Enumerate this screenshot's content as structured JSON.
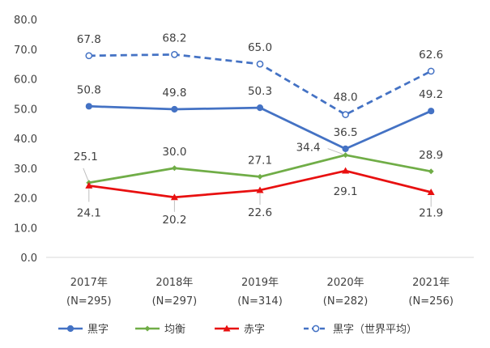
{
  "chart_data": {
    "type": "line",
    "title": "",
    "xlabel": "",
    "ylabel": "",
    "ylim": [
      0,
      80
    ],
    "ytick_step": 10,
    "y_tick_labels": [
      "0.0",
      "10.0",
      "20.0",
      "30.0",
      "40.0",
      "50.0",
      "60.0",
      "70.0",
      "80.0"
    ],
    "grid": false,
    "legend_position": "bottom",
    "categories": [
      {
        "year": "2017年",
        "n": "(N=295)"
      },
      {
        "year": "2018年",
        "n": "(N=297)"
      },
      {
        "year": "2019年",
        "n": "(N=314)"
      },
      {
        "year": "2020年",
        "n": "(N=282)"
      },
      {
        "year": "2021年",
        "n": "(N=256)"
      }
    ],
    "series": [
      {
        "name": "黒字",
        "values": [
          50.8,
          49.8,
          50.3,
          36.5,
          49.2
        ],
        "labels": [
          "50.8",
          "49.8",
          "50.3",
          "36.5",
          "49.2"
        ],
        "color": "#4472C4",
        "marker": "circle",
        "dashed": false
      },
      {
        "name": "均衡",
        "values": [
          25.1,
          30.0,
          27.1,
          34.4,
          28.9
        ],
        "labels": [
          "25.1",
          "30.0",
          "27.1",
          "34.4",
          "28.9"
        ],
        "color": "#70AD47",
        "marker": "diamond",
        "dashed": false
      },
      {
        "name": "赤字",
        "values": [
          24.1,
          20.2,
          22.6,
          29.1,
          21.9
        ],
        "labels": [
          "24.1",
          "20.2",
          "22.6",
          "29.1",
          "21.9"
        ],
        "color": "#E81010",
        "marker": "triangle",
        "dashed": false
      },
      {
        "name": "黒字（世界平均）",
        "values": [
          67.8,
          68.2,
          65.0,
          48.0,
          62.6
        ],
        "labels": [
          "67.8",
          "68.2",
          "65.0",
          "48.0",
          "62.6"
        ],
        "color": "#4472C4",
        "marker": "open-circle",
        "dashed": true
      }
    ]
  }
}
